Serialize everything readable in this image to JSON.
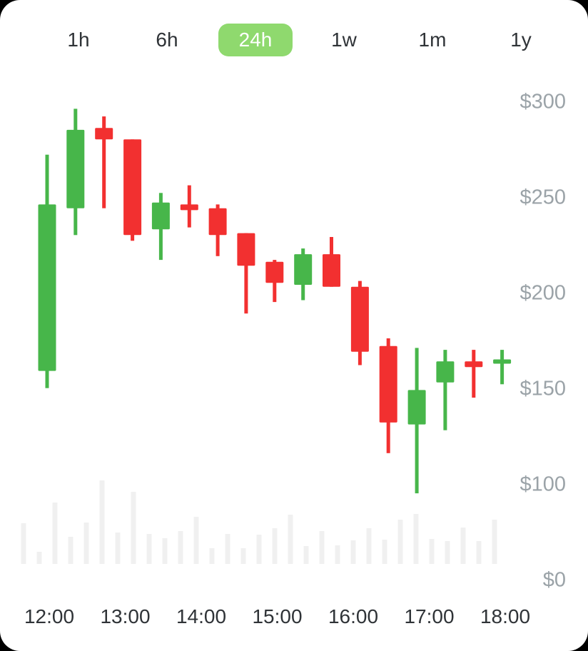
{
  "page": {
    "background_color": "#000000",
    "card_background": "#FFFFFF"
  },
  "tabs": {
    "items": [
      {
        "label": "1h",
        "active": false
      },
      {
        "label": "6h",
        "active": false
      },
      {
        "label": "24h",
        "active": true
      },
      {
        "label": "1w",
        "active": false
      },
      {
        "label": "1m",
        "active": false
      },
      {
        "label": "1y",
        "active": false
      }
    ],
    "active_background": "#8FD96E",
    "active_text_color": "#FFFFFF",
    "inactive_text_color": "#2F3337"
  },
  "chart_data": {
    "type": "candlestick",
    "title": "",
    "up_color": "#47B64A",
    "down_color": "#F23030",
    "volume_color": "#F0F0F0",
    "y_axis": {
      "tick_labels": [
        "$300",
        "$250",
        "$200",
        "$150",
        "$100",
        "$0"
      ],
      "tick_prices": [
        300,
        250,
        200,
        150,
        100,
        0
      ],
      "label_color": "#9BA3A8",
      "range_top": 300,
      "grid": false,
      "position": "right"
    },
    "x_axis": {
      "tick_labels": [
        "12:00",
        "13:00",
        "14:00",
        "15:00",
        "16:00",
        "17:00",
        "18:00"
      ],
      "label_color": "#2F3337"
    },
    "candles": [
      {
        "open": 159,
        "high": 272,
        "low": 150,
        "close": 246
      },
      {
        "open": 244,
        "high": 296,
        "low": 230,
        "close": 285
      },
      {
        "open": 286,
        "high": 292,
        "low": 244,
        "close": 280
      },
      {
        "open": 280,
        "high": 280,
        "low": 227,
        "close": 230
      },
      {
        "open": 233,
        "high": 252,
        "low": 217,
        "close": 247
      },
      {
        "open": 246,
        "high": 256,
        "low": 234,
        "close": 243
      },
      {
        "open": 244,
        "high": 246,
        "low": 219,
        "close": 230
      },
      {
        "open": 231,
        "high": 231,
        "low": 189,
        "close": 214
      },
      {
        "open": 216,
        "high": 217,
        "low": 195,
        "close": 205
      },
      {
        "open": 204,
        "high": 223,
        "low": 196,
        "close": 220
      },
      {
        "open": 220,
        "high": 229,
        "low": 203,
        "close": 203
      },
      {
        "open": 203,
        "high": 206,
        "low": 162,
        "close": 169
      },
      {
        "open": 172,
        "high": 176,
        "low": 116,
        "close": 132
      },
      {
        "open": 131,
        "high": 171,
        "low": 95,
        "close": 149
      },
      {
        "open": 153,
        "high": 170,
        "low": 128,
        "close": 164
      },
      {
        "open": 164,
        "high": 170,
        "low": 145,
        "close": 161
      },
      {
        "open": 163,
        "high": 170,
        "low": 152,
        "close": 165
      }
    ],
    "volume_relative": [
      57,
      17,
      86,
      38,
      58,
      117,
      44,
      101,
      42,
      36,
      46,
      66,
      22,
      42,
      22,
      41,
      50,
      69,
      25,
      46,
      26,
      33,
      50,
      34,
      62,
      70,
      35,
      32,
      51,
      32,
      62
    ]
  }
}
